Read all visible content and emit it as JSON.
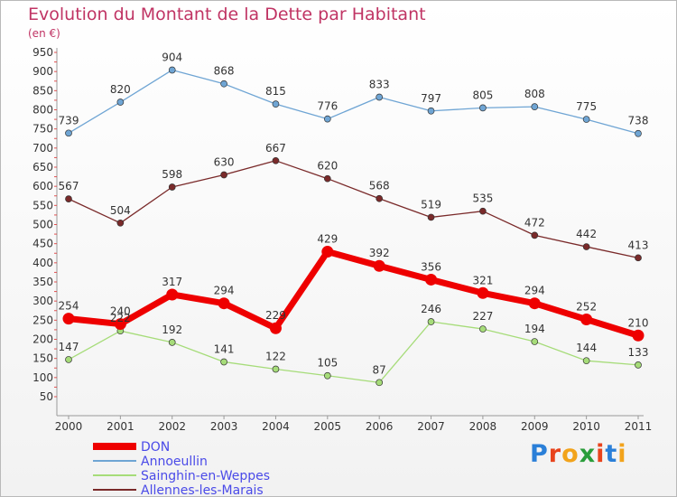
{
  "title": "Evolution du Montant de la Dette par Habitant",
  "subtitle": "(en €)",
  "logo": {
    "text": "Proxiti",
    "letter_colors": [
      "#2a7fd8",
      "#e8431c",
      "#f2a31b",
      "#2a9d3a",
      "#e8431c",
      "#2a7fd8",
      "#f2a31b"
    ]
  },
  "chart_data": {
    "type": "line",
    "title": "Evolution du Montant de la Dette par Habitant",
    "subtitle": "(en €)",
    "x": [
      "2000",
      "2001",
      "2002",
      "2003",
      "2004",
      "2005",
      "2006",
      "2007",
      "2008",
      "2009",
      "2010",
      "2011"
    ],
    "yticks": [
      50,
      100,
      150,
      200,
      250,
      300,
      350,
      400,
      450,
      500,
      550,
      600,
      650,
      700,
      750,
      800,
      850,
      900,
      950
    ],
    "ylim": [
      50,
      950
    ],
    "grid": false,
    "legend_position": "bottom-left",
    "series": [
      {
        "name": "DON",
        "color": "#ee0000",
        "values": [
          254,
          240,
          317,
          294,
          229,
          429,
          392,
          356,
          321,
          294,
          252,
          210
        ],
        "emphasis": true
      },
      {
        "name": "Annoeullin",
        "color": "#6fa5d4",
        "values": [
          739,
          820,
          904,
          868,
          815,
          776,
          833,
          797,
          805,
          808,
          775,
          738
        ]
      },
      {
        "name": "Sainghin-en-Weppes",
        "color": "#a6dc79",
        "values": [
          147,
          222,
          192,
          141,
          122,
          105,
          87,
          246,
          227,
          194,
          144,
          133
        ]
      },
      {
        "name": "Allennes-les-Marais",
        "color": "#7a2a2a",
        "values": [
          567,
          504,
          598,
          630,
          667,
          620,
          568,
          519,
          535,
          472,
          442,
          413
        ]
      }
    ]
  }
}
